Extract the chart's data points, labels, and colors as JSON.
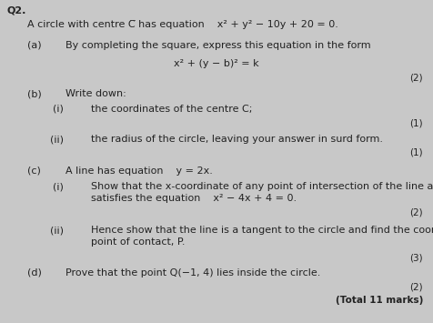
{
  "background_color": "#c8c8c8",
  "text_color": "#222222",
  "question_number": "Q2.",
  "intro": "A circle with centre C̅ has equation    x² + y² − 10y + 20 = 0.",
  "part_a_label": "(a)",
  "part_a_text": "By completing the square, express this equation in the form",
  "part_a_eq": "x² + (y − b)² = k",
  "part_a_marks": "(2)",
  "part_b_label": "(b)",
  "part_b_text": "Write down:",
  "part_b_i_label": "(i)",
  "part_b_i_text": "the coordinates of the centre C;",
  "part_b_i_marks": "(1)",
  "part_b_ii_label": "(ii)",
  "part_b_ii_text": "the radius of the circle, leaving your answer in surd form.",
  "part_b_ii_marks": "(1)",
  "part_c_label": "(c)",
  "part_c_text": "A line has equation    y = 2x.",
  "part_c_i_label": "(i)",
  "part_c_i_text": "Show that the x-coordinate of any point of intersection of the line and the circle",
  "part_c_i_text2": "satisfies the equation    x² − 4x + 4 = 0.",
  "part_c_i_marks": "(2)",
  "part_c_ii_label": "(ii)",
  "part_c_ii_text": "Hence show that the line is a tangent to the circle and find the coordinates of the",
  "part_c_ii_text2": "point of contact, P.",
  "part_c_ii_marks": "(3)",
  "part_d_label": "(d)",
  "part_d_text": "Prove that the point Q(−1, 4) lies inside the circle.",
  "part_d_marks": "(2)",
  "total_marks": "(Total 11 marks)",
  "fs": 8.0,
  "fs_small": 7.5
}
